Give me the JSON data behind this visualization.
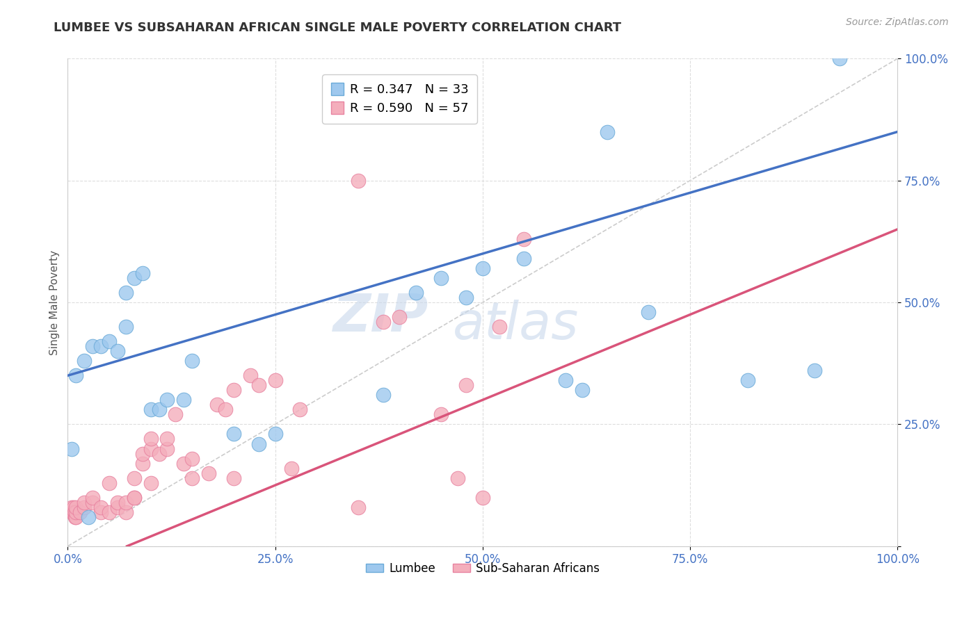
{
  "title": "LUMBEE VS SUBSAHARAN AFRICAN SINGLE MALE POVERTY CORRELATION CHART",
  "source": "Source: ZipAtlas.com",
  "ylabel": "Single Male Poverty",
  "xlim": [
    0,
    1
  ],
  "ylim": [
    0,
    1
  ],
  "xticks": [
    0,
    0.25,
    0.5,
    0.75,
    1.0
  ],
  "yticks": [
    0.0,
    0.25,
    0.5,
    0.75,
    1.0
  ],
  "xticklabels": [
    "0.0%",
    "25.0%",
    "50.0%",
    "75.0%",
    "100.0%"
  ],
  "yticklabels": [
    "",
    "25.0%",
    "50.0%",
    "75.0%",
    "100.0%"
  ],
  "background_color": "#ffffff",
  "grid_color": "#dddddd",
  "watermark_zip": "ZIP",
  "watermark_atlas": "atlas",
  "lumbee_color": "#9EC8EE",
  "lumbee_edge_color": "#6AAAD8",
  "subsaharan_color": "#F4AEBC",
  "subsaharan_edge_color": "#E882A0",
  "lumbee_R": 0.347,
  "lumbee_N": 33,
  "subsaharan_R": 0.59,
  "subsaharan_N": 57,
  "lumbee_line_color": "#4472C4",
  "subsaharan_line_color": "#D9547A",
  "ref_line_color": "#cccccc",
  "lumbee_line_intercept": 0.35,
  "lumbee_line_slope": 0.5,
  "subsaharan_line_intercept": -0.05,
  "subsaharan_line_slope": 0.7,
  "lumbee_x": [
    0.005,
    0.01,
    0.02,
    0.03,
    0.04,
    0.05,
    0.06,
    0.07,
    0.07,
    0.08,
    0.09,
    0.1,
    0.11,
    0.12,
    0.14,
    0.15,
    0.2,
    0.23,
    0.25,
    0.38,
    0.42,
    0.45,
    0.48,
    0.5,
    0.55,
    0.6,
    0.62,
    0.65,
    0.7,
    0.82,
    0.9,
    0.025,
    0.93
  ],
  "lumbee_y": [
    0.2,
    0.35,
    0.38,
    0.41,
    0.41,
    0.42,
    0.4,
    0.45,
    0.52,
    0.55,
    0.56,
    0.28,
    0.28,
    0.3,
    0.3,
    0.38,
    0.23,
    0.21,
    0.23,
    0.31,
    0.52,
    0.55,
    0.51,
    0.57,
    0.59,
    0.34,
    0.32,
    0.85,
    0.48,
    0.34,
    0.36,
    0.06,
    1.0
  ],
  "subsaharan_x": [
    0.005,
    0.005,
    0.006,
    0.007,
    0.008,
    0.009,
    0.01,
    0.01,
    0.01,
    0.015,
    0.02,
    0.02,
    0.03,
    0.03,
    0.04,
    0.04,
    0.05,
    0.05,
    0.06,
    0.06,
    0.07,
    0.07,
    0.08,
    0.08,
    0.08,
    0.09,
    0.09,
    0.1,
    0.1,
    0.1,
    0.11,
    0.12,
    0.12,
    0.13,
    0.14,
    0.15,
    0.15,
    0.17,
    0.18,
    0.19,
    0.2,
    0.2,
    0.22,
    0.23,
    0.25,
    0.27,
    0.28,
    0.35,
    0.35,
    0.38,
    0.4,
    0.45,
    0.47,
    0.48,
    0.5,
    0.52,
    0.55
  ],
  "subsaharan_y": [
    0.07,
    0.08,
    0.07,
    0.08,
    0.07,
    0.06,
    0.06,
    0.07,
    0.08,
    0.07,
    0.08,
    0.09,
    0.09,
    0.1,
    0.07,
    0.08,
    0.07,
    0.13,
    0.08,
    0.09,
    0.07,
    0.09,
    0.1,
    0.1,
    0.14,
    0.17,
    0.19,
    0.13,
    0.2,
    0.22,
    0.19,
    0.2,
    0.22,
    0.27,
    0.17,
    0.14,
    0.18,
    0.15,
    0.29,
    0.28,
    0.32,
    0.14,
    0.35,
    0.33,
    0.34,
    0.16,
    0.28,
    0.08,
    0.75,
    0.46,
    0.47,
    0.27,
    0.14,
    0.33,
    0.1,
    0.45,
    0.63
  ]
}
